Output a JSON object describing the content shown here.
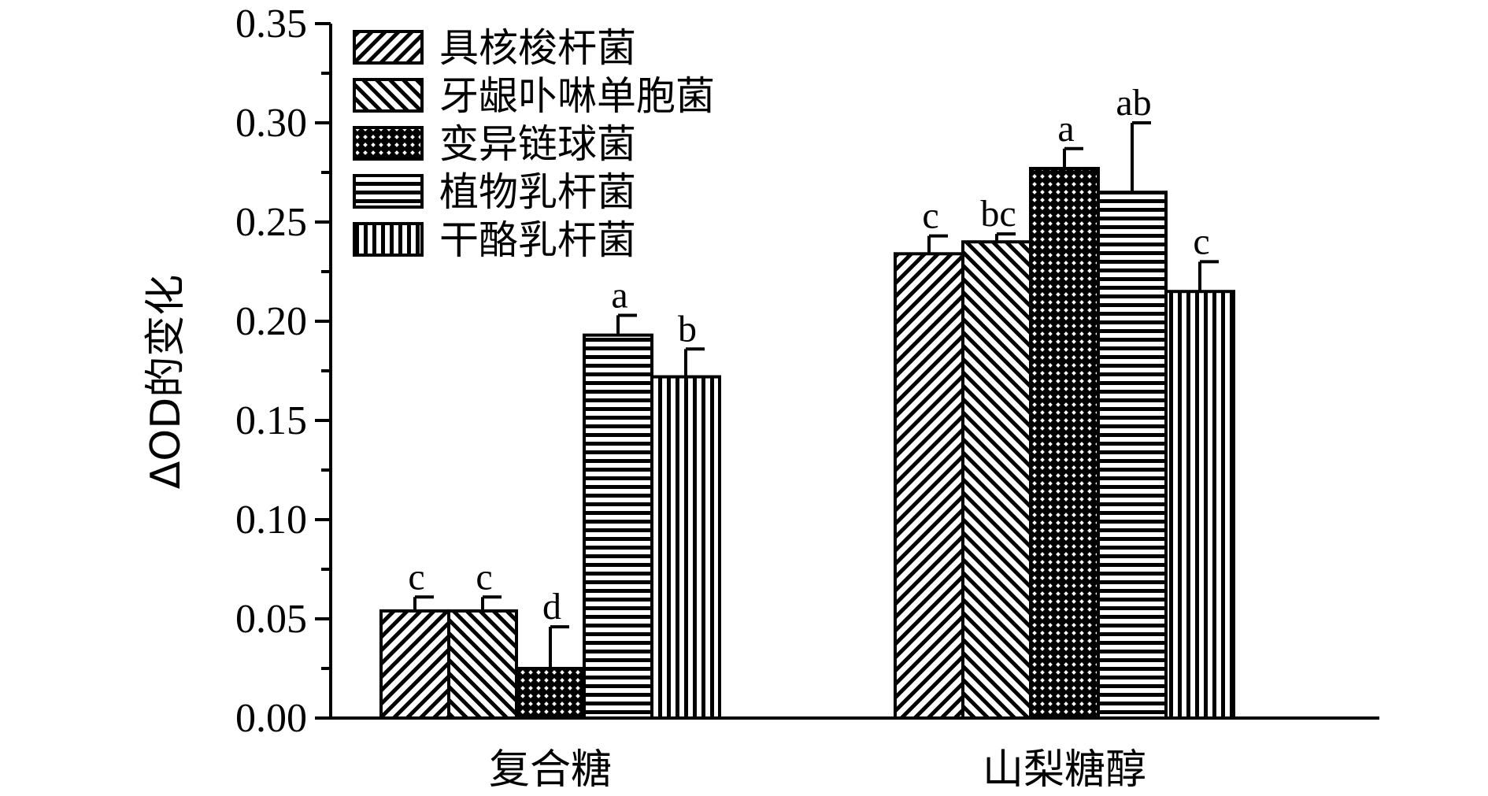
{
  "chart_data": {
    "type": "bar",
    "categories": [
      "复合糖",
      "山梨糖醇"
    ],
    "ylabel": "ΔOD的变化",
    "xlabel": "",
    "ylim": [
      0,
      0.35
    ],
    "yticks": [
      "0.00",
      "0.05",
      "0.10",
      "0.15",
      "0.20",
      "0.25",
      "0.30",
      "0.35"
    ],
    "legend_position": "top-left",
    "series": [
      {
        "name": "具核梭杆菌",
        "pattern": "diag-forward",
        "values": [
          0.054,
          0.234
        ],
        "errors": [
          0.007,
          0.009
        ],
        "significance": [
          "c",
          "c"
        ]
      },
      {
        "name": "牙龈卟啉单胞菌",
        "pattern": "diag-back",
        "values": [
          0.054,
          0.24
        ],
        "errors": [
          0.007,
          0.004
        ],
        "significance": [
          "c",
          "bc"
        ]
      },
      {
        "name": "变异链球菌",
        "pattern": "crosshatch",
        "values": [
          0.025,
          0.277
        ],
        "errors": [
          0.021,
          0.01
        ],
        "significance": [
          "d",
          "a"
        ]
      },
      {
        "name": "植物乳杆菌",
        "pattern": "horizontal",
        "values": [
          0.193,
          0.265
        ],
        "errors": [
          0.01,
          0.035
        ],
        "significance": [
          "a",
          "ab"
        ]
      },
      {
        "name": "干酪乳杆菌",
        "pattern": "vertical",
        "values": [
          0.172,
          0.215
        ],
        "errors": [
          0.014,
          0.015
        ],
        "significance": [
          "b",
          "c"
        ]
      }
    ]
  }
}
